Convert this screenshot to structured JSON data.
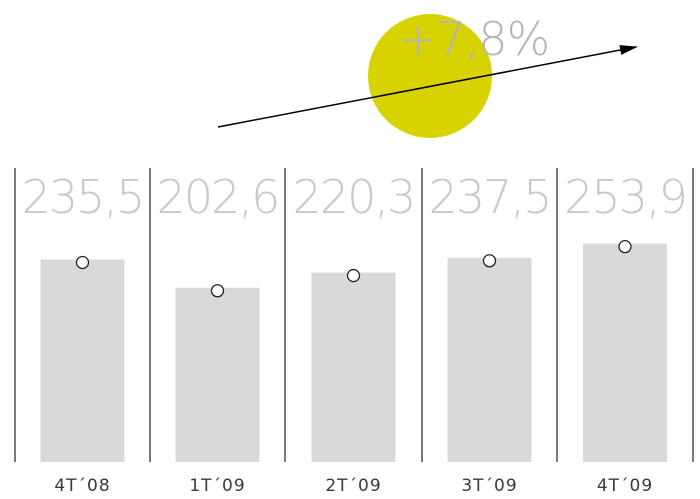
{
  "chart_data": {
    "type": "bar",
    "categories": [
      "4T´08",
      "1T´09",
      "2T´09",
      "3T´09",
      "4T´09"
    ],
    "values": [
      235.5,
      202.6,
      220.3,
      237.5,
      253.9
    ],
    "value_labels": [
      "235,5",
      "202,6",
      "220,3",
      "237,5",
      "253,9"
    ],
    "growth_label": "+7,8%",
    "title": "",
    "xlabel": "",
    "ylabel": "",
    "ylim": [
      0,
      290
    ],
    "grid": false,
    "colors": {
      "bar": "#d9d9d9",
      "marker_fill": "#ffffff",
      "marker_stroke": "#222222",
      "separator": "#222222",
      "growth_circle": "#d8d300",
      "arrow": "#000000"
    }
  }
}
